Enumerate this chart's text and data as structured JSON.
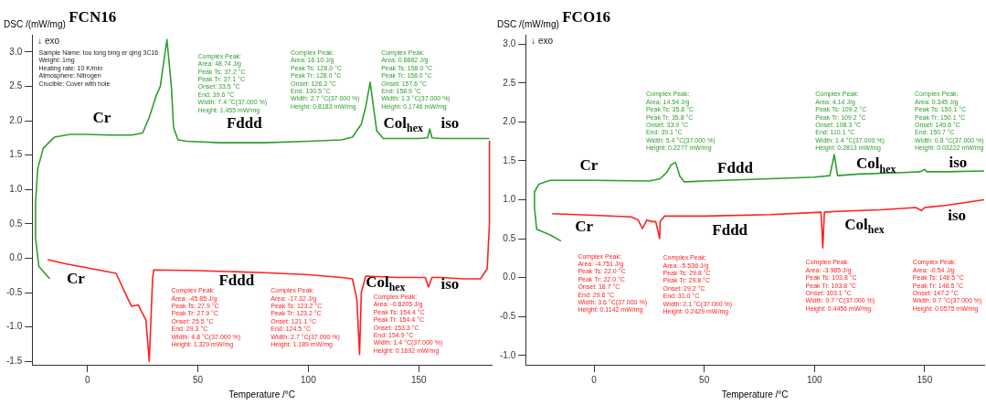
{
  "chart_data": [
    {
      "type": "line",
      "title": "FCN16",
      "xlabel": "Temperature /°C",
      "ylabel": "DSC /(mW/mg)",
      "xlim": [
        -25,
        183
      ],
      "ylim": [
        -1.55,
        3.25
      ],
      "xticks": [
        0,
        50,
        100,
        150
      ],
      "yticks": [
        {
          "value": -1.5,
          "label": "-1.5"
        },
        {
          "value": -1,
          "label": "-1.0"
        },
        {
          "value": -0.5,
          "label": "-0.5"
        },
        {
          "value": 0,
          "label": "0.0"
        },
        {
          "value": 0.5,
          "label": "0.5"
        },
        {
          "value": 1,
          "label": "1.0"
        },
        {
          "value": 1.5,
          "label": "1.5"
        },
        {
          "value": 2,
          "label": "2.0"
        },
        {
          "value": 2.5,
          "label": "2.5"
        },
        {
          "value": 3,
          "label": "3.0"
        }
      ],
      "grid": false,
      "legend": false,
      "series": [
        {
          "color": "#2e9e2e",
          "x": [
            -17,
            -22,
            -23.5,
            -23.5,
            -22.5,
            -20,
            -15,
            -8,
            0,
            10,
            20,
            25,
            28,
            31,
            33,
            36,
            38,
            39,
            41,
            45,
            60,
            80,
            100,
            115,
            120,
            124,
            126,
            128,
            129.5,
            131,
            134,
            150,
            154,
            155,
            156,
            160,
            180,
            182
          ],
          "values": [
            -0.3,
            -0.12,
            0.3,
            0.8,
            1.3,
            1.6,
            1.76,
            1.8,
            1.8,
            1.79,
            1.79,
            1.82,
            2.05,
            2.35,
            2.5,
            3.18,
            2.5,
            1.9,
            1.72,
            1.7,
            1.68,
            1.68,
            1.7,
            1.72,
            1.76,
            1.95,
            2.2,
            2.56,
            2.2,
            1.85,
            1.74,
            1.74,
            1.75,
            1.88,
            1.75,
            1.74,
            1.74,
            1.74
          ]
        },
        {
          "color": "#ff2020",
          "x": [
            182,
            182,
            181,
            178,
            170,
            160,
            156,
            154.4,
            153,
            140,
            126,
            124,
            123.2,
            122,
            120,
            115,
            100,
            80,
            50,
            30,
            29.5,
            28,
            26.5,
            23,
            20,
            17,
            13,
            0,
            -10,
            -18
          ],
          "values": [
            1.7,
            0.5,
            -0.15,
            -0.3,
            -0.3,
            -0.28,
            -0.28,
            -0.42,
            -0.28,
            -0.28,
            -0.26,
            -0.5,
            -1.4,
            -0.6,
            -0.3,
            -0.28,
            -0.24,
            -0.21,
            -0.18,
            -0.17,
            -0.3,
            -1.5,
            -0.9,
            -0.68,
            -0.7,
            -0.5,
            -0.22,
            -0.14,
            -0.08,
            -0.02
          ]
        }
      ],
      "annotations": [
        "↓ exo",
        "Sample Name: tou tong bing er qing 3C16\nWeight: 1mg\nHeating rate: 10 K/min\nAtmosphere: Nitrogen\nCrucible: Cover with hole",
        "Complex Peak:\nArea: 48.74 J/g\nPeak Ts: 37.2 °C\nPeak Tr: 37.1 °C\nOnset: 33.5 °C\nEnd: 39.6 °C\nWidth: 7.4 °C(37.000 %)\nHeight: 1.455 mW/mg",
        "Complex Peak:\nArea: 16.10 J/g\nPeak Ts: 128.0 °C\nPeak Tr: 128.0 °C\nOnset: 126.2 °C\nEnd: 130.5 °C\nWidth: 2.7 °C(37.000 %)\nHeight: 0.8183 mW/mg",
        "Complex Peak:\nArea: 0.8882 J/g\nPeak Ts: 158.0 °C\nPeak Tr: 158.0 °C\nOnset: 157.6 °C\nEnd: 158.9 °C\nWidth: 1.3 °C(37.000 %)\nHeight: 0.1746 mW/mg",
        "Complex Peak:\nArea: -45.85 J/g\nPeak Ts: 27.9 °C\nPeak Tr: 27.9 °C\nOnset: 25.5 °C\nEnd: 29.3 °C\nWidth: 4.8 °C(37.000 %)\nHeight: 1.329 mW/mg",
        "Complex Peak:\nArea: -17.32 J/g\nPeak Ts: 123.2 °C\nPeak Tr: 123.2 °C\nOnset: 121.1 °C\nEnd: 124.5 °C\nWidth: 2.7 °C(37.000 %)\nHeight: 1.189 mW/mg",
        "Complex Peak:\nArea: -0.8205 J/g\nPeak Ts: 154.4 °C\nPeak Tr: 154.4 °C\nOnset: 153.3 °C\nEnd: 154.9 °C\nWidth: 1.4 °C(37.000 %)\nHeight: 0.1692 mW/mg",
        "Cr",
        "Fddd",
        "Col$_{hex}$",
        "iso",
        "Cr",
        "Fddd",
        "Col$_{hex}$",
        "iso"
      ]
    },
    {
      "type": "line",
      "title": "FCO16",
      "xlabel": "Temperature /°C",
      "ylabel": "DSC /(mW/mg)",
      "xlim": [
        -31,
        177
      ],
      "ylim": [
        -1.12,
        3.12
      ],
      "xticks": [
        0,
        50,
        100,
        150
      ],
      "yticks": [
        {
          "value": -1,
          "label": "-1.0"
        },
        {
          "value": -0.5,
          "label": "-0.5"
        },
        {
          "value": 0,
          "label": "0.0"
        },
        {
          "value": 0.5,
          "label": "0.5"
        },
        {
          "value": 1,
          "label": "1.0"
        },
        {
          "value": 1.5,
          "label": "1.5"
        },
        {
          "value": 2,
          "label": "2.0"
        },
        {
          "value": 2.5,
          "label": "2.5"
        },
        {
          "value": 3,
          "label": "3.0"
        }
      ],
      "grid": false,
      "legend": false,
      "series": [
        {
          "color": "#2e9e2e",
          "x": [
            -15,
            -20,
            -26,
            -27,
            -27,
            -25,
            -20,
            0,
            25,
            30,
            33,
            35,
            37,
            39,
            41,
            50,
            80,
            100,
            107,
            109,
            110.5,
            120,
            140,
            148,
            150,
            151,
            160,
            177
          ],
          "values": [
            0.47,
            0.55,
            0.62,
            0.9,
            1.1,
            1.2,
            1.25,
            1.25,
            1.24,
            1.27,
            1.35,
            1.45,
            1.48,
            1.3,
            1.23,
            1.24,
            1.27,
            1.29,
            1.31,
            1.58,
            1.31,
            1.33,
            1.35,
            1.36,
            1.39,
            1.36,
            1.36,
            1.37
          ]
        },
        {
          "color": "#ff2020",
          "x": [
            177,
            170,
            160,
            150,
            148.5,
            146,
            130,
            110,
            104.5,
            103.8,
            103,
            80,
            50,
            32,
            30,
            29.8,
            28,
            26,
            24,
            22,
            20,
            17,
            0,
            -19
          ],
          "values": [
            1.0,
            0.97,
            0.93,
            0.9,
            0.86,
            0.9,
            0.87,
            0.85,
            0.84,
            0.38,
            0.84,
            0.81,
            0.79,
            0.79,
            0.72,
            0.5,
            0.72,
            0.72,
            0.74,
            0.63,
            0.74,
            0.78,
            0.8,
            0.82
          ]
        }
      ],
      "annotations": [
        "↓ exo",
        "Complex Peak:\nArea: 14.54 J/g\nPeak Ts: 35.8 °C\nPeak Tr: 35.8 °C\nOnset: 33.9 °C\nEnd: 39.1 °C\nWidth: 5.4 °C(37.000 %)\nHeight: 0.2277 mW/mg",
        "Complex Peak:\nArea: 4.14 J/g\nPeak Ts: 109.2 °C\nPeak Tr: 109.2 °C\nOnset: 108.3 °C\nEnd: 110.1 °C\nWidth: 1.4 °C(37.000 %)\nHeight: 0.2813 mW/mg",
        "Complex Peak:\nArea: 0.345 J/g\nPeak Ts: 150.1 °C\nPeak Tr: 150.1 °C\nOnset: 149.6 °C\nEnd: 150.7 °C\nWidth: 0.8 °C(37.000 %)\nHeight: 0.03222 mW/mg",
        "Complex Peak:\nArea: -4.751 J/g\nPeak Ts: 22.0 °C\nPeak Tr: 22.0 °C\nOnset: 18.7 °C\nEnd: 29.6 °C\nWidth: 3.6 °C(37.000 %)\nHeight: 0.1142 mW/mg",
        "Complex Peak:\nArea: -5.536 J/g\nPeak Ts: 29.8 °C\nPeak Tr: 29.8 °C\nOnset: 29.2 °C\nEnd: 31.0 °C\nWidth: 2.1 °C(37.000 %)\nHeight: 0.2429 mW/mg",
        "Complex Peak:\nArea: -3.985 J/g\nPeak Ts: 103.8 °C\nPeak Tr: 103.8 °C\nOnset: 103.1 °C\nWidth: 0.7 °C(37.000 %)\nHeight: 0.4456 mW/mg",
        "Complex Peak:\nArea: -0.54 J/g\nPeak Ts: 148.5 °C\nPeak Tr: 148.5 °C\nOnset: 147.2 °C\nWidth: 0.7 °C(37.000 %)\nHeight: 0.0575 mW/mg",
        "Cr",
        "Fddd",
        "Col$_{hex}$",
        "iso",
        "Cr",
        "Fddd",
        "Col$_{hex}$",
        "iso"
      ]
    }
  ]
}
